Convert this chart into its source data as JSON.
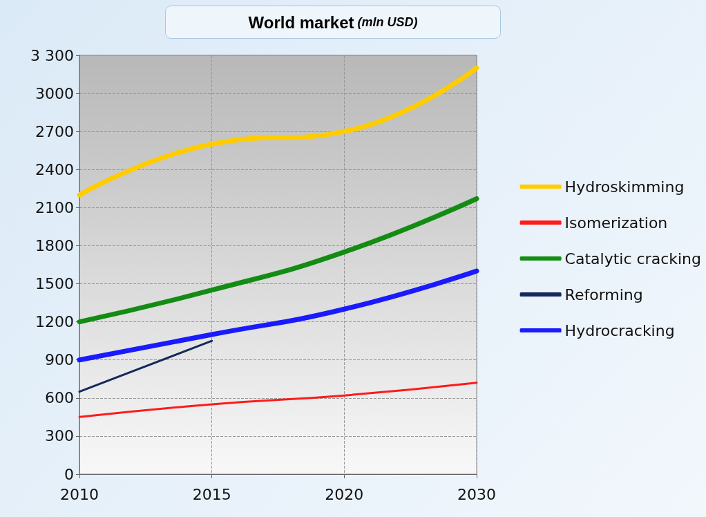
{
  "chart_data": {
    "type": "line",
    "title": "World market",
    "subtitle": "(mln USD)",
    "categories": [
      "2010",
      "2015",
      "2020",
      "2030"
    ],
    "series": [
      {
        "name": "Hydroskimming",
        "color": "#ffcc00",
        "values": [
          2200,
          2600,
          2700,
          3200
        ]
      },
      {
        "name": "Isomerization",
        "color": "#ff1a1a",
        "values": [
          450,
          550,
          620,
          720
        ]
      },
      {
        "name": "Catalytic cracking",
        "color": "#148c14",
        "values": [
          1200,
          1450,
          1750,
          2170
        ]
      },
      {
        "name": "Reforming",
        "color": "#14285a",
        "values": [
          650,
          1050,
          null,
          null
        ]
      },
      {
        "name": "Hydrocracking",
        "color": "#1a1aff",
        "values": [
          900,
          1100,
          1300,
          1600
        ]
      }
    ],
    "ylim": [
      0,
      3300
    ],
    "yticks": [
      0,
      300,
      600,
      900,
      1200,
      1500,
      1800,
      2100,
      2400,
      2700,
      3000,
      {
        "value": 3300,
        "label": "3 300"
      }
    ],
    "grid": true,
    "legend": "right",
    "marker": "none",
    "line_style": "solid"
  }
}
